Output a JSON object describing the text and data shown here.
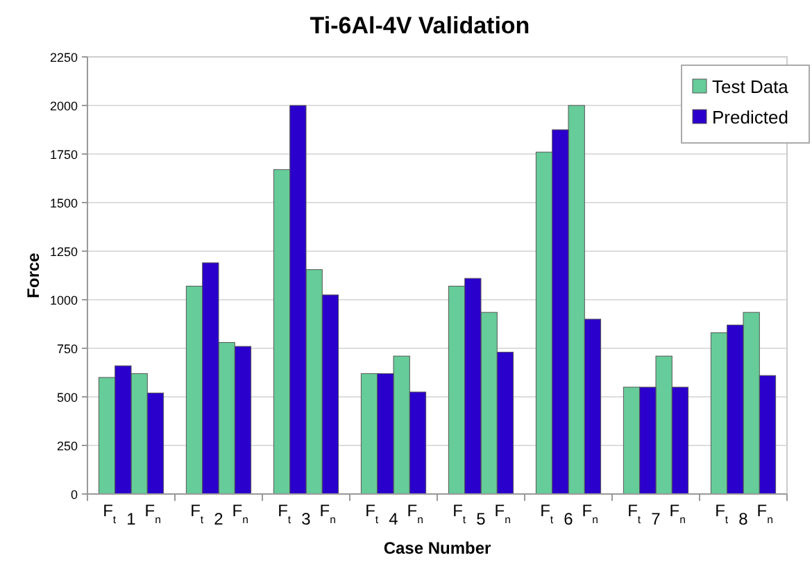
{
  "chart_data": {
    "type": "bar",
    "title": "Ti-6Al-4V Validation",
    "xlabel": "Case Number",
    "ylabel": "Force",
    "categories": [
      "F$_{t}$",
      "F$_{n}$",
      "F$_{t}$",
      "F$_{n}$",
      "F$_{t}$",
      "F$_{n}$",
      "F$_{t}$",
      "F$_{n}$",
      "F$_{t}$",
      "F$_{n}$",
      "F$_{t}$",
      "F$_{n}$",
      "F$_{t}$",
      "F$_{n}$",
      "F$_{t}$",
      "F$_{n}$"
    ],
    "annotations": [
      "1",
      "2",
      "3",
      "4",
      "5",
      "6",
      "7",
      "8"
    ],
    "series": [
      {
        "name": "Test Data",
        "color": "#66cc99",
        "values": [
          600,
          620,
          1070,
          780,
          1670,
          1155,
          620,
          710,
          1070,
          935,
          1760,
          2000,
          550,
          710,
          830,
          935
        ]
      },
      {
        "name": "Predicted",
        "color": "#2a00cc",
        "values": [
          660,
          520,
          1190,
          760,
          2000,
          1025,
          620,
          525,
          1110,
          730,
          1875,
          900,
          550,
          550,
          870,
          610
        ]
      }
    ],
    "ylim": [
      0,
      2250
    ],
    "yticks": [
      0,
      250,
      500,
      750,
      1000,
      1250,
      1500,
      1750,
      2000,
      2250
    ],
    "grid": "y",
    "legend": "top right"
  }
}
